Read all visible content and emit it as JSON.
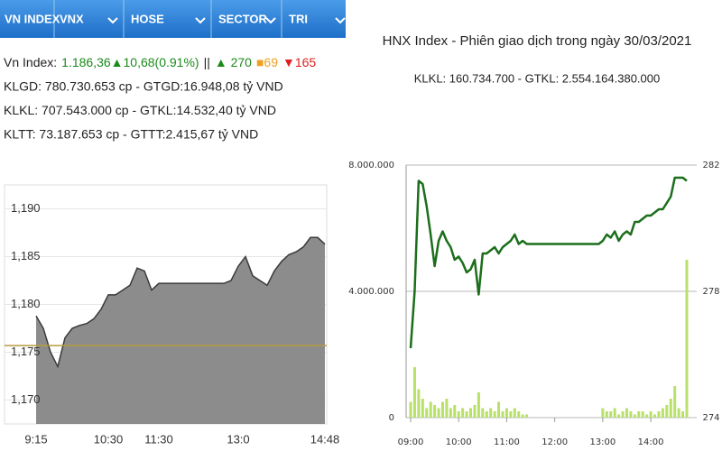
{
  "tabs": [
    "VN INDEX",
    "VNX",
    "HOSE",
    "SECTOR",
    "TRI"
  ],
  "index_line": [
    {
      "text": "Vn Index:",
      "color": "#222222"
    },
    {
      "text": "1.186,36▲10,68(0.91%)",
      "color": "#1a8a1a"
    },
    {
      "text": "||",
      "color": "#222222"
    },
    {
      "text": "▲ 270",
      "color": "#1a8a1a"
    },
    {
      "text": "■69",
      "color": "#f0a020"
    },
    {
      "text": "▼165",
      "color": "#e02020"
    }
  ],
  "info_lines": [
    "KLGD: 780.730.653 cp - GTGD:16.948,08 tỷ VND",
    "KLKL: 707.543.000 cp - GTKL:14.532,40 tỷ VND",
    "KLTT: 73.187.653 cp - GTTT:2.415,67 tỷ VND"
  ],
  "chart_data": [
    {
      "type": "area",
      "color": "#8c8c8c",
      "line_color": "#3a3a3a",
      "categories": [
        "9:15",
        null,
        null,
        null,
        null,
        null,
        null,
        null,
        null,
        null,
        "10:30",
        null,
        null,
        null,
        null,
        null,
        null,
        "11:30",
        null,
        null,
        null,
        null,
        null,
        null,
        null,
        null,
        null,
        null,
        "13:0",
        null,
        null,
        null,
        null,
        null,
        null,
        null,
        null,
        null,
        null,
        null,
        "14:48"
      ],
      "values": [
        1178.8,
        1177.5,
        1175,
        1173.5,
        1176.5,
        1177.5,
        1177.8,
        1178,
        1178.5,
        1179.5,
        1181,
        1181,
        1181.5,
        1182,
        1183.8,
        1183.5,
        1181.5,
        1182.2,
        1182.2,
        1182.2,
        1182.2,
        1182.2,
        1182.2,
        1182.2,
        1182.2,
        1182.2,
        1182.2,
        1182.5,
        1184,
        1185,
        1183,
        1182.5,
        1182,
        1183.5,
        1184.5,
        1185.2,
        1185.5,
        1186,
        1187,
        1187,
        1186.3
      ],
      "ylim": [
        1167.5,
        1192.5
      ],
      "yticks": [
        {
          "value": 1170,
          "label": "1,170"
        },
        {
          "value": 1175,
          "label": "1,175"
        },
        {
          "value": 1180,
          "label": "1,180"
        },
        {
          "value": 1185,
          "label": "1,185"
        },
        {
          "value": 1190,
          "label": "1,190"
        }
      ],
      "reference_line": {
        "value": 1175.7,
        "color": "#b89a40"
      },
      "grid": true
    },
    {
      "type": "line-volume",
      "title": "HNX Index - Phiên giao dịch trong ngày 30/03/2021",
      "subtitle": "KLKL: 160.734.700 - GTKL: 2.554.164.380.000",
      "categories": [
        "09:00",
        null,
        null,
        null,
        null,
        null,
        null,
        null,
        null,
        null,
        null,
        null,
        "10:00",
        null,
        null,
        null,
        null,
        null,
        null,
        null,
        null,
        null,
        null,
        null,
        "11:00",
        null,
        null,
        null,
        null,
        null,
        null,
        null,
        null,
        null,
        null,
        null,
        "12:00",
        null,
        null,
        null,
        null,
        null,
        null,
        null,
        null,
        null,
        null,
        null,
        "13:00",
        null,
        null,
        null,
        null,
        null,
        null,
        null,
        null,
        null,
        null,
        null,
        "14:00",
        null,
        null,
        null,
        null,
        null,
        null,
        null,
        null,
        null
      ],
      "series": [
        {
          "type": "bar",
          "axis": "y",
          "color": "#b8e06a",
          "values": [
            500000,
            1600000,
            900000,
            600000,
            300000,
            500000,
            400000,
            300000,
            500000,
            600000,
            300000,
            400000,
            200000,
            300000,
            200000,
            300000,
            400000,
            800000,
            300000,
            200000,
            300000,
            200000,
            500000,
            200000,
            300000,
            200000,
            300000,
            200000,
            100000,
            100000,
            null,
            null,
            null,
            null,
            null,
            null,
            null,
            null,
            null,
            null,
            null,
            null,
            null,
            null,
            null,
            null,
            null,
            null,
            300000,
            200000,
            200000,
            300000,
            100000,
            200000,
            300000,
            200000,
            100000,
            200000,
            200000,
            100000,
            200000,
            100000,
            200000,
            300000,
            400000,
            600000,
            1000000,
            300000,
            200000,
            5000000
          ]
        },
        {
          "type": "line",
          "axis": "y2",
          "color": "#1b6e1b",
          "values": [
            276.2,
            278.0,
            281.5,
            281.4,
            280.7,
            279.8,
            278.8,
            279.6,
            279.9,
            279.6,
            279.4,
            279.0,
            279.1,
            278.9,
            278.6,
            278.7,
            279.0,
            277.9,
            279.2,
            279.2,
            279.3,
            279.4,
            279.2,
            279.4,
            279.5,
            279.6,
            279.8,
            279.5,
            279.6,
            279.5,
            279.5,
            279.5,
            279.5,
            279.5,
            279.5,
            279.5,
            279.5,
            279.5,
            279.5,
            279.5,
            279.5,
            279.5,
            279.5,
            279.5,
            279.5,
            279.5,
            279.5,
            279.5,
            279.6,
            279.8,
            279.7,
            279.9,
            279.6,
            279.8,
            279.9,
            279.8,
            280.2,
            280.2,
            280.3,
            280.4,
            280.4,
            280.5,
            280.6,
            280.6,
            280.8,
            281.0,
            281.6,
            281.6,
            281.6,
            281.5
          ]
        }
      ],
      "ylim": [
        0,
        8000000
      ],
      "yticks": [
        0,
        {
          "value": 4000000,
          "label": "4.000.000"
        },
        {
          "value": 8000000,
          "label": "8.000.000"
        }
      ],
      "y2lim": [
        274,
        282
      ],
      "y2ticks": [
        274,
        278,
        282
      ],
      "grid": true
    }
  ]
}
